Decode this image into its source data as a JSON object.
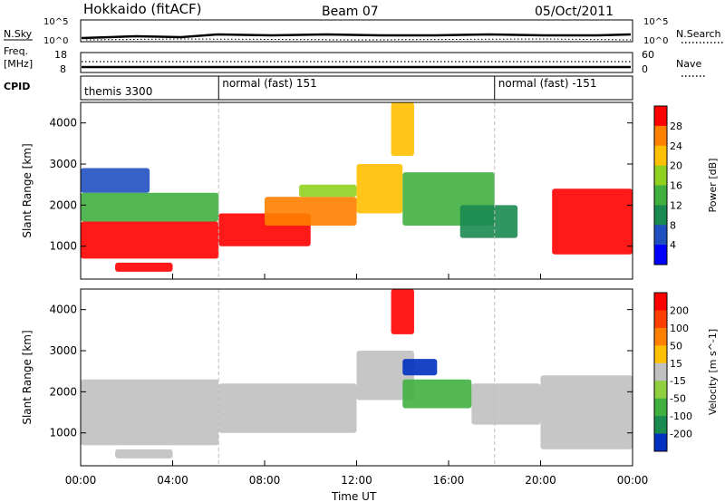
{
  "header": {
    "station": "Hokkaido (fitACF)",
    "beam": "Beam 07",
    "date": "05/Oct/2011"
  },
  "strips": {
    "nsky_label": "N.Sky",
    "nsearch_label": "N.Search",
    "noise_ticks_left": [
      "10^5",
      "10^0"
    ],
    "noise_ticks_right": [
      "10^5",
      "10^0"
    ],
    "freq_label_top": "Freq.",
    "freq_label_bottom": "[MHz]",
    "freq_ticks": [
      "18",
      "8"
    ],
    "nave_label": "Nave",
    "nave_ticks": [
      "60",
      "0"
    ],
    "cpid_label": "CPID",
    "cpid_segments": [
      {
        "name": "themis 3300",
        "start_hour": 0,
        "end_hour": 6
      },
      {
        "name": "normal (fast) 151",
        "start_hour": 6,
        "end_hour": 18
      },
      {
        "name": "normal (fast) -151",
        "start_hour": 18,
        "end_hour": 24
      }
    ]
  },
  "chart_data": [
    {
      "type": "heatmap",
      "title": "Power",
      "xlabel": "Time UT",
      "ylabel": "Slant Range [km]",
      "x_ticks": [
        "00:00",
        "04:00",
        "08:00",
        "12:00",
        "16:00",
        "20:00",
        "00:00"
      ],
      "xlim_hours": [
        0,
        24
      ],
      "ylim": [
        200,
        4500
      ],
      "y_ticks": [
        1000,
        2000,
        3000,
        4000
      ],
      "colorbar": {
        "label": "Power [dB]",
        "ticks": [
          "4",
          "8",
          "12",
          "16",
          "20",
          "24",
          "28"
        ],
        "colors": [
          "#0000ff",
          "#2050c0",
          "#1a8a50",
          "#40b040",
          "#90d020",
          "#ffc000",
          "#ff8000",
          "#ff0000"
        ]
      },
      "regions": [
        {
          "t0": 0.0,
          "t1": 6.0,
          "r0": 700,
          "r1": 1600,
          "level": 7
        },
        {
          "t0": 0.0,
          "t1": 6.0,
          "r0": 1600,
          "r1": 2300,
          "level": 3
        },
        {
          "t0": 0.0,
          "t1": 3.0,
          "r0": 2300,
          "r1": 2900,
          "level": 1
        },
        {
          "t0": 1.5,
          "t1": 4.0,
          "r0": 380,
          "r1": 600,
          "level": 7
        },
        {
          "t0": 6.0,
          "t1": 10.0,
          "r0": 1000,
          "r1": 1800,
          "level": 7
        },
        {
          "t0": 8.0,
          "t1": 12.0,
          "r0": 1500,
          "r1": 2200,
          "level": 6
        },
        {
          "t0": 9.5,
          "t1": 12.0,
          "r0": 2200,
          "r1": 2500,
          "level": 4
        },
        {
          "t0": 12.0,
          "t1": 14.0,
          "r0": 1800,
          "r1": 3000,
          "level": 5
        },
        {
          "t0": 13.5,
          "t1": 14.5,
          "r0": 3200,
          "r1": 4500,
          "level": 5
        },
        {
          "t0": 14.0,
          "t1": 18.0,
          "r0": 1500,
          "r1": 2800,
          "level": 3
        },
        {
          "t0": 16.5,
          "t1": 19.0,
          "r0": 1200,
          "r1": 2000,
          "level": 2
        },
        {
          "t0": 20.5,
          "t1": 24.0,
          "r0": 800,
          "r1": 2400,
          "level": 7
        }
      ]
    },
    {
      "type": "heatmap",
      "title": "Velocity",
      "xlabel": "Time UT",
      "ylabel": "Slant Range [km]",
      "x_ticks": [
        "00:00",
        "04:00",
        "08:00",
        "12:00",
        "16:00",
        "20:00",
        "00:00"
      ],
      "xlim_hours": [
        0,
        24
      ],
      "ylim": [
        200,
        4500
      ],
      "y_ticks": [
        1000,
        2000,
        3000,
        4000
      ],
      "colorbar": {
        "label": "Velocity [m s^-1]",
        "ticks": [
          "200",
          "100",
          "50",
          "15",
          "-15",
          "-50",
          "-100",
          "-200"
        ],
        "colors": [
          "#0030c0",
          "#1a8a50",
          "#40b040",
          "#90d040",
          "#c0c0c0",
          "#ffc000",
          "#ff8000",
          "#ff4000",
          "#ff0000"
        ]
      },
      "regions": [
        {
          "t0": 0.0,
          "t1": 6.0,
          "r0": 700,
          "r1": 2300,
          "level": 4
        },
        {
          "t0": 1.5,
          "t1": 4.0,
          "r0": 380,
          "r1": 600,
          "level": 4
        },
        {
          "t0": 6.0,
          "t1": 12.0,
          "r0": 1000,
          "r1": 2200,
          "level": 4
        },
        {
          "t0": 12.0,
          "t1": 14.5,
          "r0": 1800,
          "r1": 3000,
          "level": 4
        },
        {
          "t0": 13.5,
          "t1": 14.5,
          "r0": 3400,
          "r1": 4500,
          "level": 8
        },
        {
          "t0": 14.0,
          "t1": 15.5,
          "r0": 2400,
          "r1": 2800,
          "level": 0
        },
        {
          "t0": 14.0,
          "t1": 17.0,
          "r0": 1600,
          "r1": 2300,
          "level": 2
        },
        {
          "t0": 17.0,
          "t1": 20.0,
          "r0": 1200,
          "r1": 2200,
          "level": 4
        },
        {
          "t0": 20.0,
          "t1": 24.0,
          "r0": 600,
          "r1": 2400,
          "level": 4
        }
      ]
    }
  ]
}
